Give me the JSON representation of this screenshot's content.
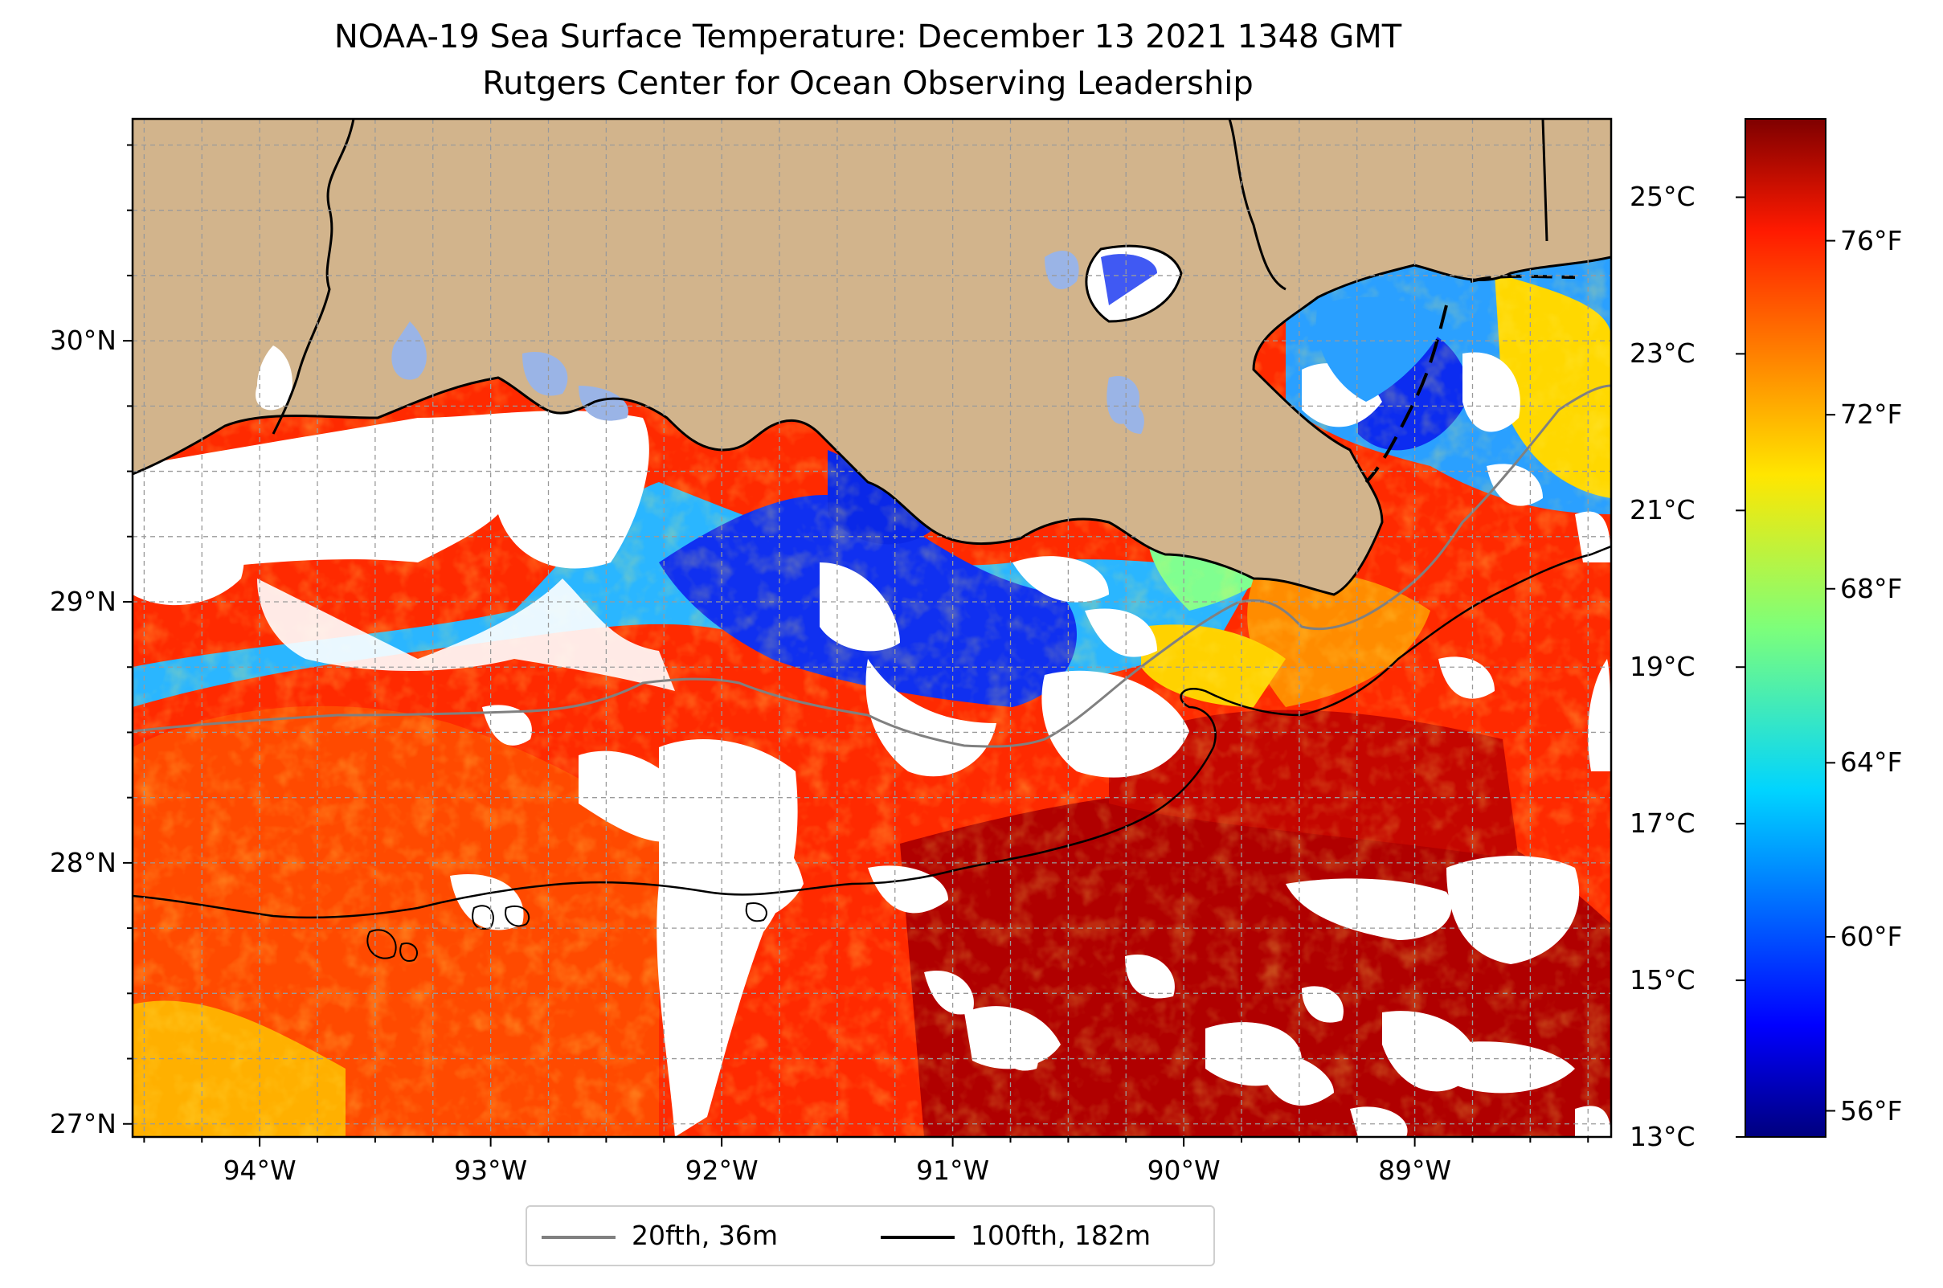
{
  "title": {
    "line1": "NOAA-19 Sea Surface Temperature: December 13 2021 1348 GMT",
    "line2": "Rutgers Center for Ocean Observing Leadership"
  },
  "map": {
    "lon_range": [
      -94.55,
      -88.15
    ],
    "lat_range": [
      26.95,
      30.85
    ],
    "lon_ticks": [
      {
        "value": -94,
        "label": "94°W"
      },
      {
        "value": -93,
        "label": "93°W"
      },
      {
        "value": -92,
        "label": "92°W"
      },
      {
        "value": -91,
        "label": "91°W"
      },
      {
        "value": -90,
        "label": "90°W"
      },
      {
        "value": -89,
        "label": "89°W"
      }
    ],
    "lat_ticks": [
      {
        "value": 30,
        "label": "30°N"
      },
      {
        "value": 29,
        "label": "29°N"
      },
      {
        "value": 28,
        "label": "28°N"
      },
      {
        "value": 27,
        "label": "27°N"
      }
    ],
    "gridlines": true,
    "land_color": "#d2b48c",
    "lake_color": "#9ab4e6",
    "no_data_color": "#ffffff"
  },
  "colorbar": {
    "colormap": "jet",
    "celsius_ticks": [
      {
        "value": 25,
        "label": "25°C"
      },
      {
        "value": 23,
        "label": "23°C"
      },
      {
        "value": 21,
        "label": "21°C"
      },
      {
        "value": 19,
        "label": "19°C"
      },
      {
        "value": 17,
        "label": "17°C"
      },
      {
        "value": 15,
        "label": "15°C"
      },
      {
        "value": 13,
        "label": "13°C"
      }
    ],
    "fahrenheit_ticks": [
      {
        "value": 76,
        "label": "76°F"
      },
      {
        "value": 72,
        "label": "72°F"
      },
      {
        "value": 68,
        "label": "68°F"
      },
      {
        "value": 64,
        "label": "64°F"
      },
      {
        "value": 60,
        "label": "60°F"
      },
      {
        "value": 56,
        "label": "56°F"
      }
    ],
    "range_celsius": [
      13,
      26
    ]
  },
  "legend": {
    "items": [
      {
        "label": "20fth, 36m",
        "color": "#808080"
      },
      {
        "label": "100fth, 182m",
        "color": "#000000"
      }
    ]
  }
}
